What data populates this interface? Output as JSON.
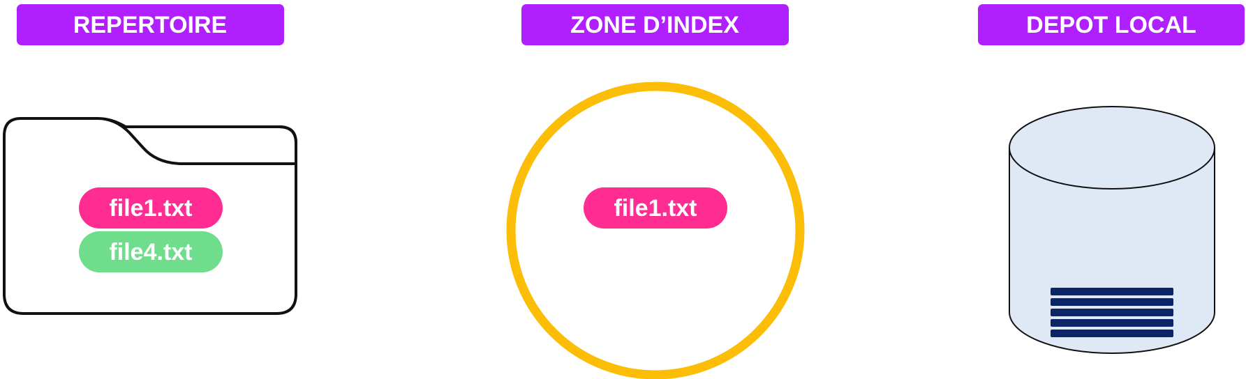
{
  "columns": [
    {
      "title": "REPERTOIRE",
      "files": [
        {
          "label": "file1.txt",
          "color": "#ff2d91"
        },
        {
          "label": "file4.txt",
          "color": "#6fdd8b"
        }
      ]
    },
    {
      "title": "ZONE D’INDEX",
      "files": [
        {
          "label": "file1.txt",
          "color": "#ff2d91"
        }
      ]
    },
    {
      "title": "DEPOT LOCAL",
      "files": []
    }
  ]
}
